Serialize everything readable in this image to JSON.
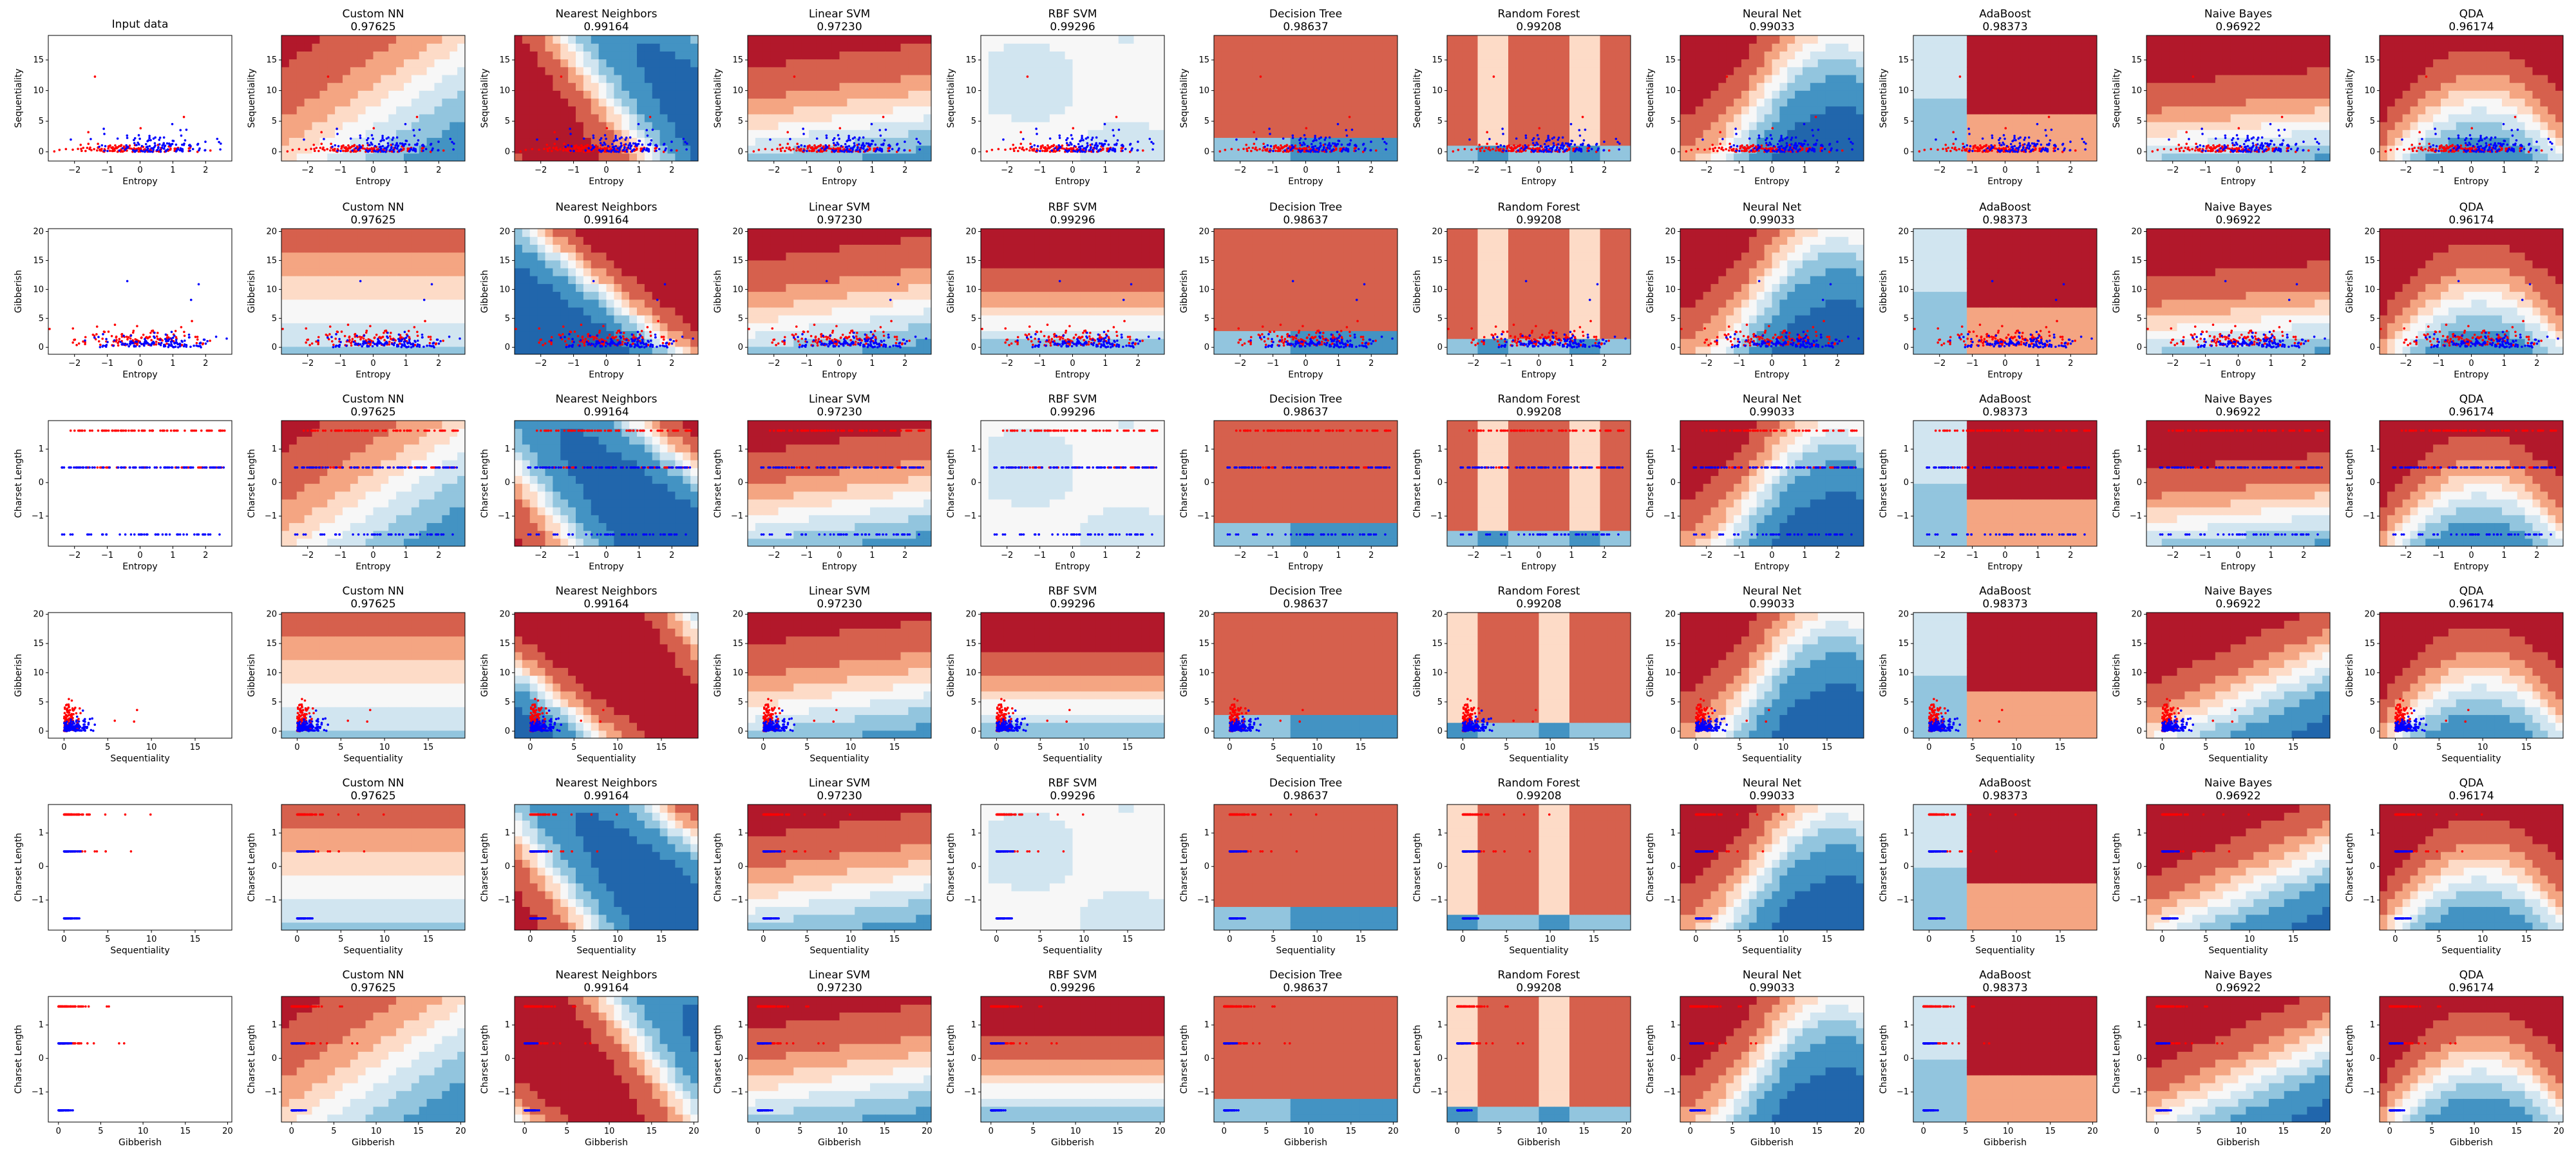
{
  "chart_data": {
    "type": "scatter",
    "figure_description_free": true,
    "input_title": "Input data",
    "classifiers": [
      {
        "name": "Custom NN",
        "score": "0.97625"
      },
      {
        "name": "Nearest Neighbors",
        "score": "0.99164"
      },
      {
        "name": "Linear SVM",
        "score": "0.97230"
      },
      {
        "name": "RBF SVM",
        "score": "0.99296"
      },
      {
        "name": "Decision Tree",
        "score": "0.98637"
      },
      {
        "name": "Random Forest",
        "score": "0.99208"
      },
      {
        "name": "Neural Net",
        "score": "0.99033"
      },
      {
        "name": "AdaBoost",
        "score": "0.98373"
      },
      {
        "name": "Naive Bayes",
        "score": "0.96922"
      },
      {
        "name": "QDA",
        "score": "0.96174"
      }
    ],
    "rows": [
      {
        "xlabel": "Entropy",
        "ylabel": "Sequentiality",
        "xlim": [
          -2.8,
          2.8
        ],
        "ylim": [
          -1.5,
          19
        ],
        "xticks": [
          -2,
          -1,
          0,
          1,
          2
        ],
        "yticks": [
          0,
          5,
          10,
          15
        ],
        "pattern": "entropy-seq"
      },
      {
        "xlabel": "Entropy",
        "ylabel": "Gibberish",
        "xlim": [
          -2.8,
          2.8
        ],
        "ylim": [
          -1.2,
          20.5
        ],
        "xticks": [
          -2,
          -1,
          0,
          1,
          2
        ],
        "yticks": [
          0,
          5,
          10,
          15,
          20
        ],
        "pattern": "entropy-gib"
      },
      {
        "xlabel": "Entropy",
        "ylabel": "Charset Length",
        "xlim": [
          -2.8,
          2.8
        ],
        "ylim": [
          -1.9,
          1.85
        ],
        "xticks": [
          -2,
          -1,
          0,
          1,
          2
        ],
        "yticks": [
          -1,
          0,
          1
        ],
        "pattern": "entropy-cs"
      },
      {
        "xlabel": "Sequentiality",
        "ylabel": "Gibberish",
        "xlim": [
          -1.8,
          19.2
        ],
        "ylim": [
          -1.2,
          20.3
        ],
        "xticks": [
          0,
          5,
          10,
          15
        ],
        "yticks": [
          0,
          5,
          10,
          15,
          20
        ],
        "pattern": "seq-gib"
      },
      {
        "xlabel": "Sequentiality",
        "ylabel": "Charset Length",
        "xlim": [
          -1.8,
          19.2
        ],
        "ylim": [
          -1.9,
          1.85
        ],
        "xticks": [
          0,
          5,
          10,
          15
        ],
        "yticks": [
          -1,
          0,
          1
        ],
        "pattern": "seq-cs"
      },
      {
        "xlabel": "Gibberish",
        "ylabel": "Charset Length",
        "xlim": [
          -1.2,
          20.5
        ],
        "ylim": [
          -1.9,
          1.85
        ],
        "xticks": [
          0,
          5,
          10,
          15,
          20
        ],
        "yticks": [
          -1,
          0,
          1
        ],
        "pattern": "gib-cs"
      }
    ],
    "classes": [
      {
        "name": "class-0",
        "color": "#ff0000"
      },
      {
        "name": "class-1",
        "color": "#0000ff"
      }
    ],
    "colormap": [
      "#2166ac",
      "#4393c3",
      "#92c5de",
      "#d1e5f0",
      "#f7f7f7",
      "#fddbc7",
      "#f4a582",
      "#d6604d",
      "#b2182b"
    ]
  }
}
